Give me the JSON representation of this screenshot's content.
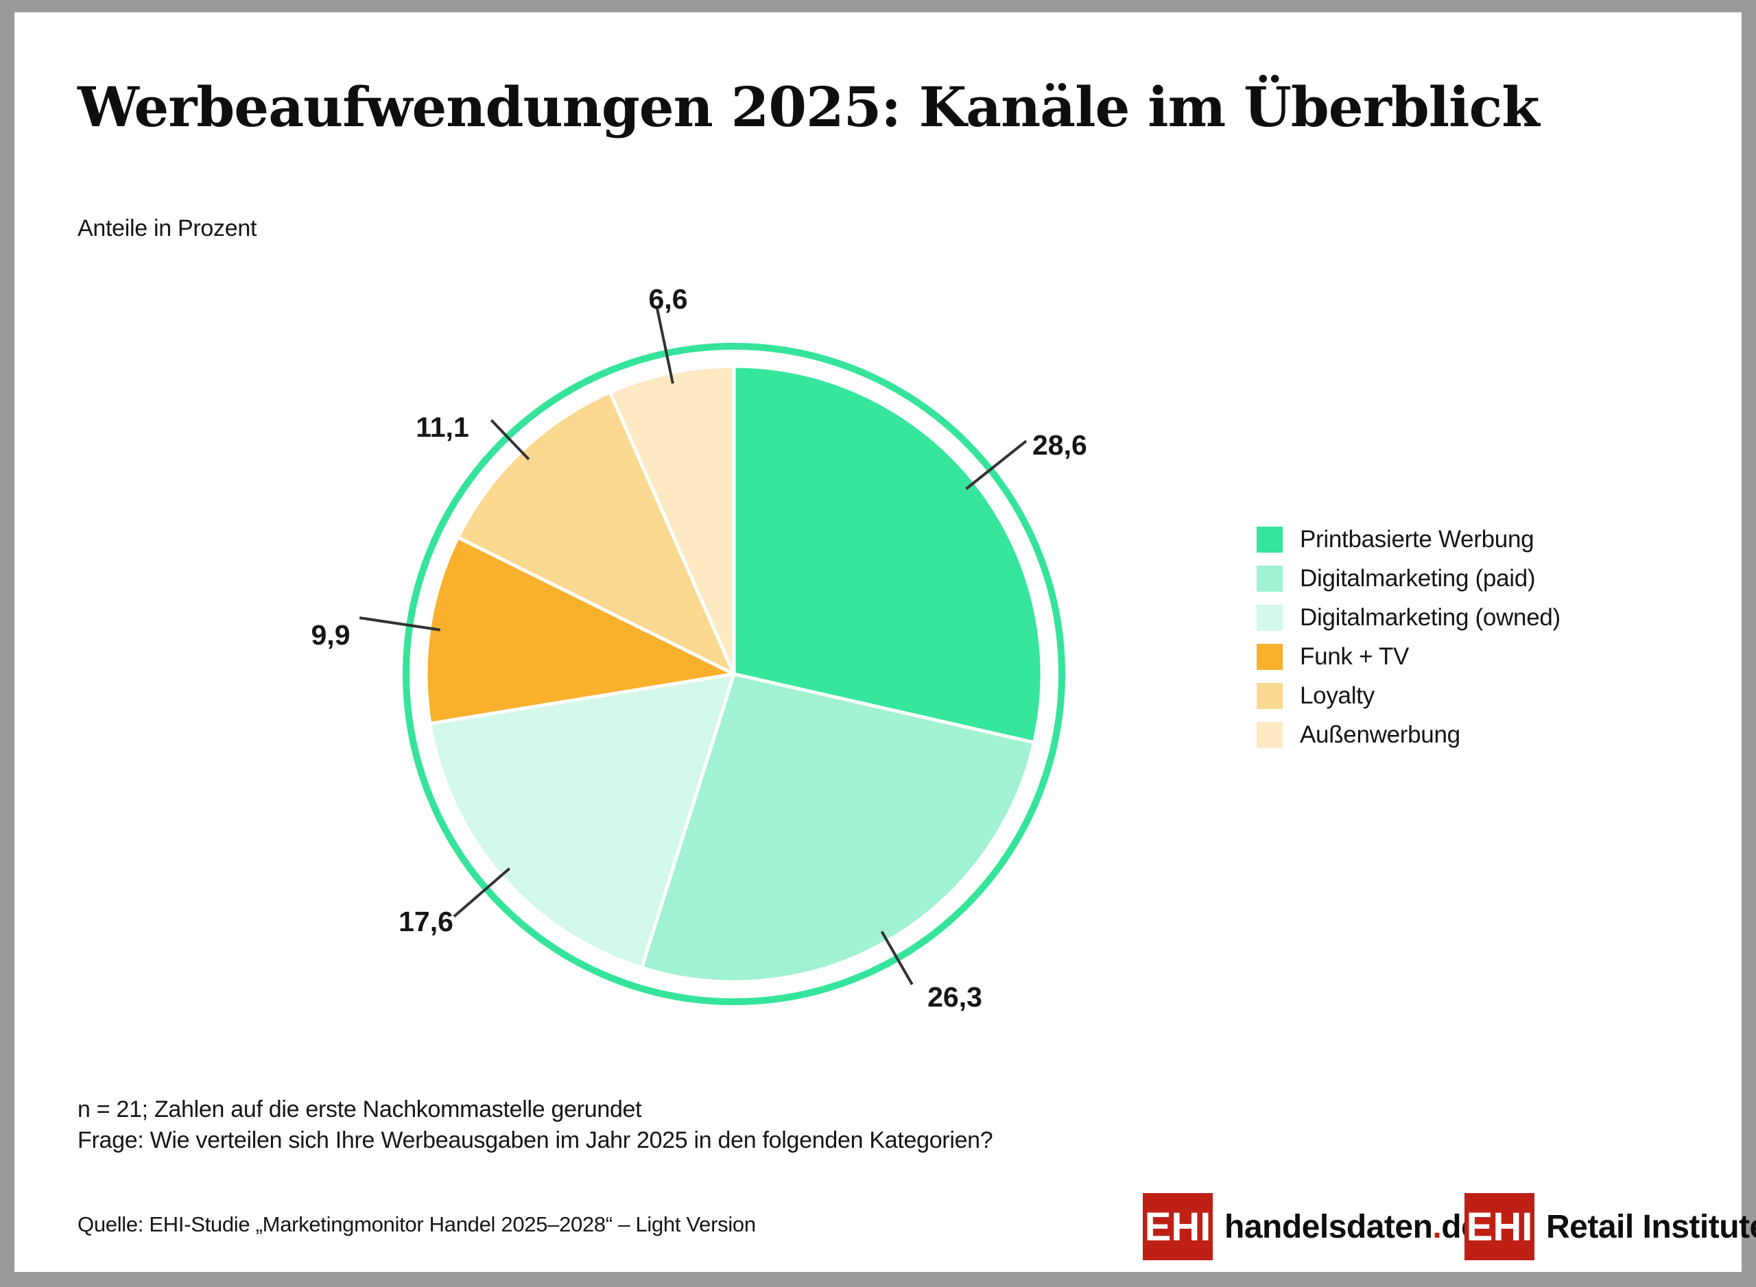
{
  "header": {
    "title": "Werbeaufwendungen 2025: Kanäle im Überblick",
    "subtitle": "Anteile in Prozent"
  },
  "chart_data": {
    "type": "pie",
    "title": "Werbeaufwendungen 2025: Kanäle im Überblick",
    "subtitle": "Anteile in Prozent",
    "unit": "percent",
    "start_angle_deg": 0,
    "direction": "clockwise",
    "legend_position": "right",
    "outer_ring_color": "#35e49a",
    "slice_gap_color": "#ffffff",
    "leader_line_color": "#333333",
    "series": [
      {
        "label": "Printbasierte Werbung",
        "value": 28.6,
        "value_display": "28,6",
        "color": "#35e69c"
      },
      {
        "label": "Digitalmarketing (paid)",
        "value": 26.3,
        "value_display": "26,3",
        "color": "#a0f2d0"
      },
      {
        "label": "Digitalmarketing (owned)",
        "value": 17.6,
        "value_display": "17,6",
        "color": "#d3f9ea"
      },
      {
        "label": "Funk + TV",
        "value": 9.9,
        "value_display": "9,9",
        "color": "#f9b02c"
      },
      {
        "label": "Loyalty",
        "value": 11.1,
        "value_display": "11,1",
        "color": "#fbd88f"
      },
      {
        "label": "Außenwerbung",
        "value": 6.6,
        "value_display": "6,6",
        "color": "#fdeac2"
      }
    ]
  },
  "footnotes": {
    "line1": "n = 21; Zahlen auf die erste Nachkommastelle gerundet",
    "line2": "Frage: Wie verteilen sich Ihre Werbeausgaben im Jahr 2025 in den folgenden Kategorien?"
  },
  "source": {
    "text": "Quelle: EHI-Studie „Marketingmonitor Handel 2025–2028“ – Light Version"
  },
  "logos": [
    {
      "badge": "EHI",
      "text_main": "handelsdaten",
      "text_dot": ".",
      "text_tld": "de",
      "badge_color": "#bf2016"
    },
    {
      "badge": "EHI",
      "text_main": "Retail Institute",
      "registered": "®",
      "badge_color": "#bf2016"
    }
  ],
  "colors": {
    "frame": "#9a9a9a",
    "background": "#ffffff",
    "text": "#151515",
    "logo_red": "#bf2016"
  }
}
